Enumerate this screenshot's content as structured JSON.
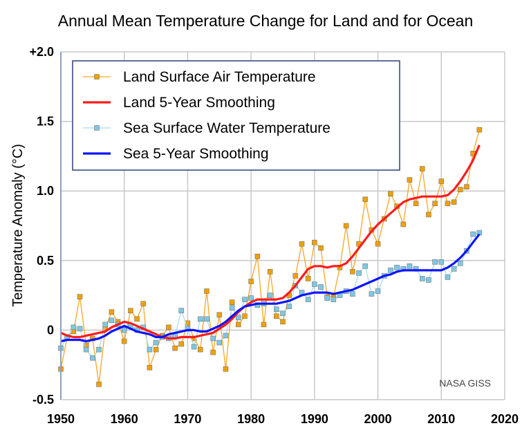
{
  "chart_data": {
    "type": "line",
    "title": "Annual Mean Temperature Change for Land and for Ocean",
    "xlabel": "",
    "ylabel": "Temperature Anomaly (°C)",
    "xlim": [
      1950,
      2020
    ],
    "ylim": [
      -0.5,
      2.0
    ],
    "xticks": [
      "1950",
      "1960",
      "1970",
      "1980",
      "1990",
      "2000",
      "2010",
      "2020"
    ],
    "yticks": [
      "+2.0",
      "1.5",
      "1.0",
      "0.5",
      "0",
      "-0.5"
    ],
    "grid": true,
    "legend_placement": "top-left",
    "credit": "NASA GISS",
    "x_start": 1950,
    "series": [
      {
        "name": "Land Surface Air Temperature",
        "color": "#f5a623",
        "marker_color": "#f0a000",
        "style": "markers",
        "values": [
          -0.28,
          -0.05,
          -0.01,
          0.24,
          -0.11,
          -0.06,
          -0.39,
          0.01,
          0.13,
          0.06,
          -0.08,
          0.14,
          0.08,
          0.19,
          -0.27,
          -0.14,
          -0.04,
          0.02,
          -0.13,
          -0.1,
          0.05,
          -0.06,
          -0.14,
          0.28,
          -0.16,
          0.11,
          -0.28,
          0.2,
          0.04,
          0.1,
          0.35,
          0.53,
          0.04,
          0.42,
          0.1,
          0.06,
          0.25,
          0.39,
          0.62,
          0.37,
          0.63,
          0.59,
          0.24,
          0.24,
          0.45,
          0.75,
          0.42,
          0.62,
          0.94,
          0.72,
          0.62,
          0.8,
          0.98,
          0.89,
          0.76,
          1.08,
          0.91,
          1.16,
          0.83,
          0.91,
          1.07,
          0.91,
          0.92,
          1.01,
          1.03,
          1.27,
          1.44
        ]
      },
      {
        "name": "Land 5-Year Smoothing",
        "color": "#ff1a1a",
        "style": "smooth",
        "values": [
          -0.02,
          -0.04,
          -0.05,
          -0.05,
          -0.04,
          -0.03,
          -0.02,
          -0.01,
          0.02,
          0.04,
          0.06,
          0.05,
          0.03,
          0.01,
          -0.01,
          -0.03,
          -0.05,
          -0.06,
          -0.06,
          -0.05,
          -0.05,
          -0.05,
          -0.04,
          -0.03,
          -0.02,
          0.01,
          0.04,
          0.08,
          0.13,
          0.17,
          0.2,
          0.22,
          0.22,
          0.22,
          0.22,
          0.23,
          0.27,
          0.32,
          0.38,
          0.44,
          0.46,
          0.46,
          0.45,
          0.46,
          0.46,
          0.48,
          0.53,
          0.59,
          0.65,
          0.71,
          0.76,
          0.8,
          0.84,
          0.88,
          0.92,
          0.94,
          0.95,
          0.96,
          0.96,
          0.96,
          0.96,
          0.97,
          1.01,
          1.07,
          1.14,
          1.22,
          1.33
        ]
      },
      {
        "name": "Sea Surface Water Temperature",
        "color": "#a8dcf0",
        "marker_color": "#7ec8e3",
        "style": "markers",
        "values": [
          -0.13,
          -0.05,
          0.02,
          0.01,
          -0.14,
          -0.2,
          -0.14,
          0.04,
          0.07,
          0.04,
          0.0,
          0.03,
          0.0,
          0.02,
          -0.14,
          -0.09,
          -0.05,
          -0.06,
          -0.04,
          0.14,
          0.01,
          -0.12,
          0.08,
          0.08,
          -0.06,
          -0.09,
          -0.04,
          0.16,
          0.09,
          0.22,
          0.23,
          0.18,
          0.19,
          0.25,
          0.15,
          0.12,
          0.17,
          0.32,
          0.27,
          0.22,
          0.33,
          0.31,
          0.23,
          0.22,
          0.25,
          0.28,
          0.26,
          0.41,
          0.46,
          0.26,
          0.28,
          0.39,
          0.43,
          0.45,
          0.44,
          0.46,
          0.44,
          0.37,
          0.36,
          0.49,
          0.49,
          0.38,
          0.44,
          0.48,
          0.57,
          0.69,
          0.7
        ]
      },
      {
        "name": "Sea 5-Year Smoothing",
        "color": "#0a14ff",
        "style": "smooth",
        "values": [
          -0.08,
          -0.07,
          -0.07,
          -0.07,
          -0.08,
          -0.07,
          -0.06,
          -0.04,
          -0.01,
          0.01,
          0.03,
          0.01,
          -0.01,
          -0.02,
          -0.03,
          -0.05,
          -0.05,
          -0.03,
          -0.02,
          -0.01,
          0.0,
          0.0,
          -0.01,
          -0.01,
          0.01,
          0.03,
          0.06,
          0.1,
          0.14,
          0.17,
          0.18,
          0.19,
          0.19,
          0.19,
          0.19,
          0.2,
          0.21,
          0.23,
          0.25,
          0.26,
          0.27,
          0.27,
          0.27,
          0.26,
          0.27,
          0.28,
          0.29,
          0.31,
          0.33,
          0.35,
          0.37,
          0.39,
          0.4,
          0.42,
          0.43,
          0.43,
          0.43,
          0.43,
          0.43,
          0.43,
          0.43,
          0.45,
          0.48,
          0.52,
          0.57,
          0.63,
          0.69
        ]
      }
    ]
  }
}
